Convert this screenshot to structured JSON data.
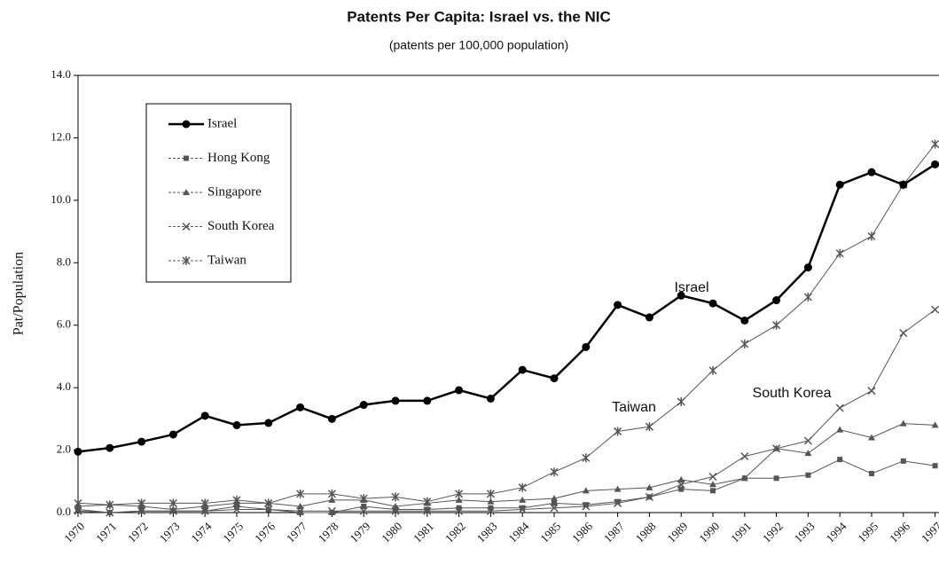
{
  "chart_data": {
    "type": "line",
    "title": "Patents Per Capita: Israel vs. the NIC",
    "subtitle": "(patents per 100,000 population)",
    "y_label": "Pat/Population",
    "categories": [
      "1970",
      "1971",
      "1972",
      "1973",
      "1974",
      "1975",
      "1976",
      "1977",
      "1978",
      "1979",
      "1980",
      "1981",
      "1982",
      "1983",
      "1984",
      "1985",
      "1986",
      "1987",
      "1988",
      "1989",
      "1990",
      "1991",
      "1992",
      "1993",
      "1994",
      "1995",
      "1996",
      "1997"
    ],
    "series": [
      {
        "name": "Israel",
        "color": "#000000",
        "marker": "circle",
        "values": [
          1.95,
          2.07,
          2.27,
          2.5,
          3.1,
          2.8,
          2.87,
          3.37,
          3.0,
          3.45,
          3.58,
          3.58,
          3.92,
          3.65,
          4.57,
          4.3,
          5.3,
          6.65,
          6.25,
          6.95,
          6.7,
          6.15,
          6.8,
          7.85,
          10.5,
          10.9,
          10.5,
          11.15
        ]
      },
      {
        "name": "Hong Kong",
        "color": "#555555",
        "marker": "square",
        "values": [
          0.1,
          0.0,
          0.05,
          0.05,
          0.05,
          0.2,
          0.1,
          0.0,
          0.0,
          0.2,
          0.1,
          0.1,
          0.15,
          0.15,
          0.15,
          0.3,
          0.25,
          0.35,
          0.5,
          0.75,
          0.7,
          1.1,
          1.1,
          1.2,
          1.7,
          1.25,
          1.65,
          1.5
        ]
      },
      {
        "name": "Singapore",
        "color": "#555555",
        "marker": "triangle",
        "values": [
          0.2,
          0.25,
          0.2,
          0.1,
          0.2,
          0.3,
          0.3,
          0.2,
          0.4,
          0.4,
          0.2,
          0.3,
          0.4,
          0.35,
          0.4,
          0.45,
          0.7,
          0.75,
          0.8,
          1.05,
          0.9,
          1.1,
          2.05,
          1.9,
          2.65,
          2.4,
          2.85,
          2.8
        ]
      },
      {
        "name": "South Korea",
        "color": "#555555",
        "marker": "x",
        "values": [
          0.05,
          0.0,
          0.05,
          0.05,
          0.05,
          0.1,
          0.1,
          0.05,
          0.05,
          0.05,
          0.05,
          0.05,
          0.05,
          0.05,
          0.1,
          0.15,
          0.2,
          0.3,
          0.5,
          0.9,
          1.15,
          1.8,
          2.05,
          2.3,
          3.35,
          3.9,
          5.75,
          6.5
        ]
      },
      {
        "name": "Taiwan",
        "color": "#555555",
        "marker": "star",
        "values": [
          0.3,
          0.25,
          0.3,
          0.3,
          0.3,
          0.4,
          0.3,
          0.6,
          0.6,
          0.45,
          0.5,
          0.35,
          0.6,
          0.6,
          0.8,
          1.3,
          1.75,
          2.6,
          2.75,
          3.55,
          4.55,
          5.4,
          6.0,
          6.9,
          8.3,
          8.85,
          10.5,
          11.8
        ]
      }
    ],
    "ylim": [
      0,
      14
    ],
    "yticks": [
      {
        "value": 0,
        "label": "0.0"
      },
      {
        "value": 2,
        "label": "2.0"
      },
      {
        "value": 4,
        "label": "4.0"
      },
      {
        "value": 6,
        "label": "6.0"
      },
      {
        "value": 8,
        "label": "8.0"
      },
      {
        "value": 10,
        "label": "10.0"
      },
      {
        "value": 12,
        "label": "12.0"
      },
      {
        "value": 14,
        "label": "14.0"
      }
    ],
    "annotations": [
      {
        "text": "Israel"
      },
      {
        "text": "Taiwan"
      },
      {
        "text": "South Korea"
      }
    ]
  }
}
